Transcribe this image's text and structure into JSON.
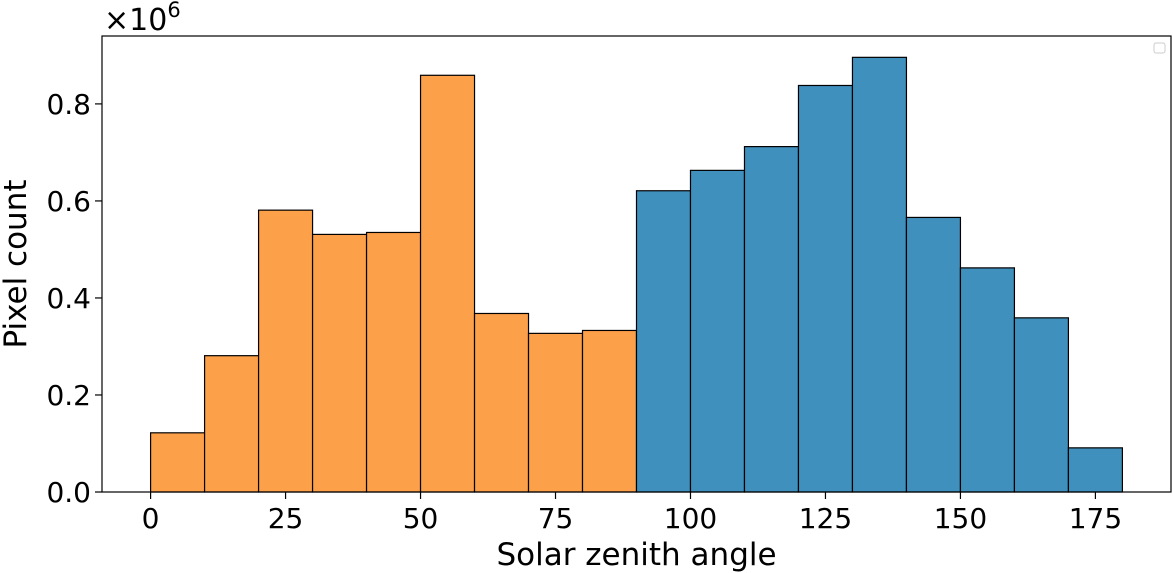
{
  "chart_data": {
    "type": "bar",
    "xlabel": "Solar zenith angle",
    "ylabel": "Pixel count",
    "y_scale_offset": "×10",
    "y_scale_exponent": "6",
    "xlim": [
      -9,
      189
    ],
    "ylim": [
      0,
      0.94
    ],
    "x_ticks": [
      0,
      25,
      50,
      75,
      100,
      125,
      150,
      175
    ],
    "y_ticks": [
      0.0,
      0.2,
      0.4,
      0.6,
      0.8
    ],
    "y_tick_labels": [
      "0.0",
      "0.2",
      "0.4",
      "0.6",
      "0.8"
    ],
    "bin_width": 10,
    "grid": false,
    "legend": "top-right, empty",
    "series": [
      {
        "color": "#fda04a",
        "bins": [
          0,
          10,
          20,
          30,
          40,
          50,
          60,
          70,
          80
        ],
        "values": [
          0.122,
          0.281,
          0.581,
          0.531,
          0.535,
          0.859,
          0.368,
          0.327,
          0.333
        ]
      },
      {
        "color": "#4090bd",
        "bins": [
          90,
          100,
          110,
          120,
          130,
          140,
          150,
          160,
          170
        ],
        "values": [
          0.621,
          0.663,
          0.712,
          0.838,
          0.896,
          0.566,
          0.462,
          0.359,
          0.091
        ]
      }
    ]
  }
}
